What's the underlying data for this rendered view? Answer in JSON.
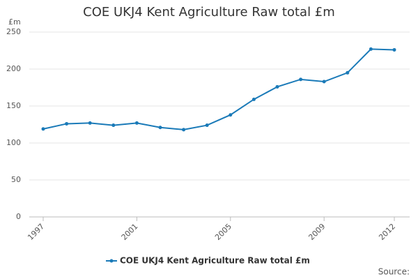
{
  "chart_data": {
    "type": "line",
    "title": "COE UKJ4 Kent Agriculture Raw total £m",
    "ylabel": "£m",
    "source": "Source:",
    "x": [
      1997,
      1998,
      1999,
      2000,
      2001,
      2002,
      2003,
      2004,
      2005,
      2006,
      2007,
      2008,
      2009,
      2010,
      2011,
      2012
    ],
    "series": [
      {
        "name": "COE UKJ4 Kent Agriculture Raw total £m",
        "color": "#1a7ab8",
        "values": [
          119,
          126,
          127,
          124,
          127,
          121,
          118,
          124,
          138,
          159,
          176,
          186,
          183,
          195,
          227,
          226
        ]
      }
    ],
    "xlim": [
      1997,
      2012
    ],
    "xticks": [
      1997,
      2001,
      2005,
      2009,
      2012
    ],
    "ylim": [
      0,
      250
    ],
    "yticks": [
      0,
      50,
      100,
      150,
      200,
      250
    ],
    "grid": true,
    "legend": "bottom"
  }
}
